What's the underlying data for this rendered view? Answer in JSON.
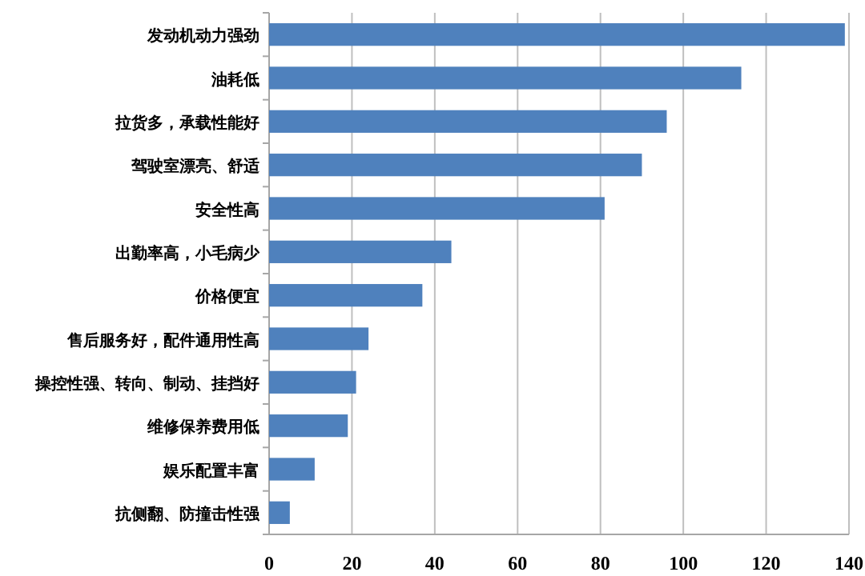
{
  "chart_data": {
    "type": "bar",
    "orientation": "horizontal",
    "categories": [
      "发动机动力强劲",
      "油耗低",
      "拉货多，承载性能好",
      "驾驶室漂亮、舒适",
      "安全性高",
      "出勤率高，小毛病少",
      "价格便宜",
      "售后服务好，配件通用性高",
      "操控性强、转向、制动、挂挡好",
      "维修保养费用低",
      "娱乐配置丰富",
      "抗侧翻、防撞击性强"
    ],
    "values": [
      139,
      114,
      96,
      90,
      81,
      44,
      37,
      24,
      21,
      19,
      11,
      5
    ],
    "color": "#4f81bd",
    "xlim": [
      0,
      140
    ],
    "xticks": [
      0,
      20,
      40,
      60,
      80,
      100,
      120,
      140
    ],
    "grid": "x"
  }
}
